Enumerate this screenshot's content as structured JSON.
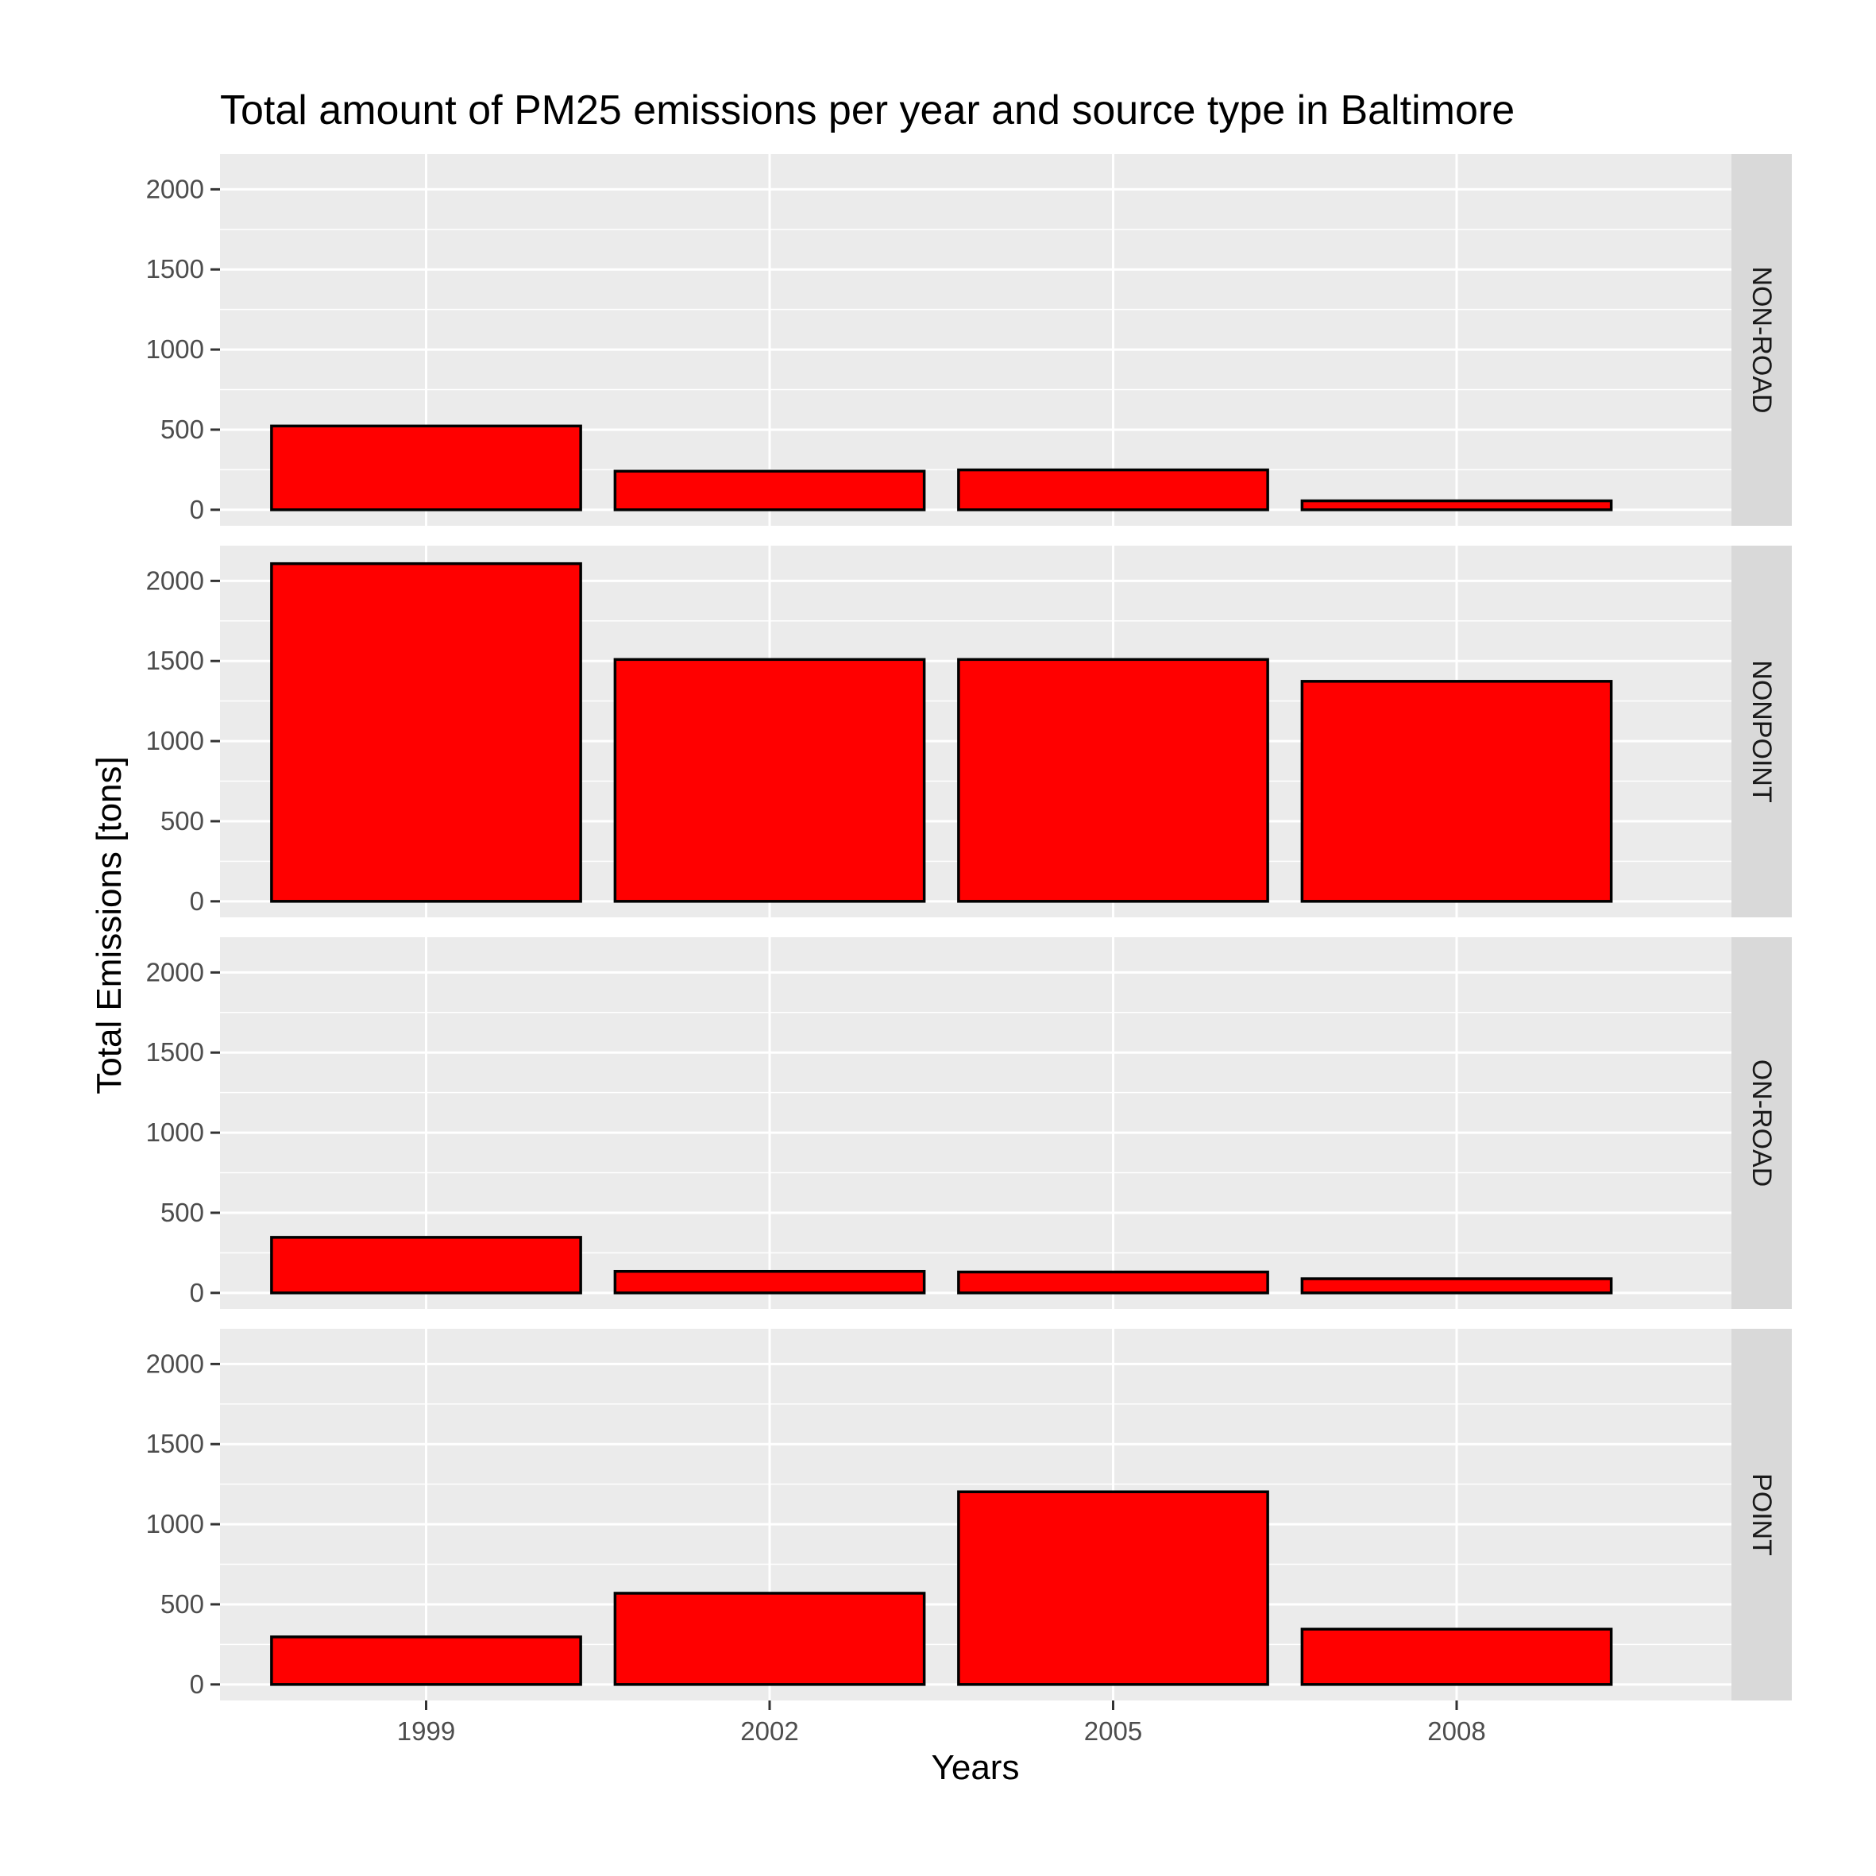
{
  "chart_data": {
    "type": "bar",
    "title": "Total amount of PM25 emissions per year and source type in Baltimore",
    "xlabel": "Years",
    "ylabel": "Total Emissions [tons]",
    "categories": [
      "1999",
      "2002",
      "2005",
      "2008"
    ],
    "ylim": [
      -100,
      2220
    ],
    "yticks": [
      0,
      500,
      1000,
      1500,
      2000
    ],
    "grid": true,
    "legend": "none",
    "bar_fill": "#ff0000",
    "bar_outline": "#000000",
    "panel_background": "#ebebeb",
    "strip_background": "#d9d9d9",
    "series": [
      {
        "name": "NON-ROAD",
        "values": [
          522.9,
          240.8,
          248.9,
          55.8
        ]
      },
      {
        "name": "NONPOINT",
        "values": [
          2107.6,
          1509.5,
          1509.5,
          1373.2
        ]
      },
      {
        "name": "ON-ROAD",
        "values": [
          346.8,
          134.3,
          130.4,
          88.3
        ]
      },
      {
        "name": "POINT",
        "values": [
          296.8,
          569.3,
          1202.5,
          344.98
        ]
      }
    ]
  }
}
